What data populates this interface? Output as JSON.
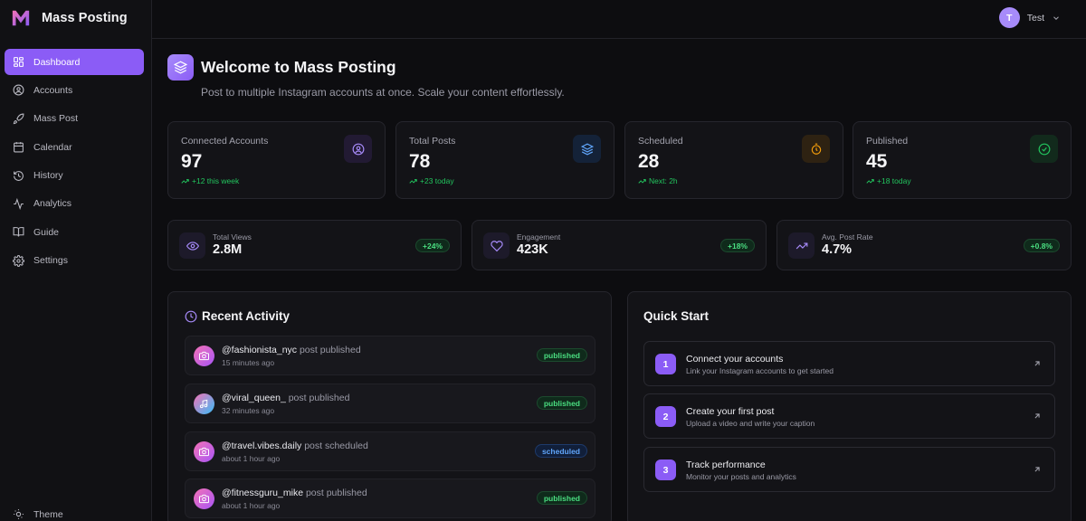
{
  "brand": {
    "name": "Mass Posting"
  },
  "colors": {
    "accent": "#8b5cf6",
    "success": "#22c55e",
    "info": "#60a5fa",
    "warning": "#f59e0b"
  },
  "sidebar": {
    "items": [
      {
        "label": "Dashboard",
        "icon": "dashboard-icon",
        "active": true
      },
      {
        "label": "Accounts",
        "icon": "user-circle-icon"
      },
      {
        "label": "Mass Post",
        "icon": "rocket-icon"
      },
      {
        "label": "Calendar",
        "icon": "calendar-icon"
      },
      {
        "label": "History",
        "icon": "history-icon"
      },
      {
        "label": "Analytics",
        "icon": "activity-icon"
      },
      {
        "label": "Guide",
        "icon": "book-icon"
      },
      {
        "label": "Settings",
        "icon": "gear-icon"
      }
    ],
    "theme_label": "Theme"
  },
  "user": {
    "initial": "T",
    "name": "Test"
  },
  "header": {
    "title": "Welcome to Mass Posting",
    "subtitle": "Post to multiple Instagram accounts at once. Scale your content effortlessly."
  },
  "stats": [
    {
      "label": "Connected Accounts",
      "value": "97",
      "delta": "+12 this week",
      "icon": "user-circle-icon"
    },
    {
      "label": "Total Posts",
      "value": "78",
      "delta": "+23 today",
      "icon": "layers-icon"
    },
    {
      "label": "Scheduled",
      "value": "28",
      "delta": "Next: 2h",
      "icon": "timer-icon"
    },
    {
      "label": "Published",
      "value": "45",
      "delta": "+18 today",
      "icon": "check-circle-icon"
    }
  ],
  "metrics": [
    {
      "label": "Total Views",
      "value": "2.8M",
      "change": "+24%",
      "icon": "eye-icon"
    },
    {
      "label": "Engagement",
      "value": "423K",
      "change": "+18%",
      "icon": "heart-icon"
    },
    {
      "label": "Avg. Post Rate",
      "value": "4.7%",
      "change": "+0.8%",
      "icon": "trending-up-icon"
    }
  ],
  "recent_activity": {
    "title": "Recent Activity",
    "items": [
      {
        "handle": "@fashionista_nyc",
        "action": "post published",
        "time": "15 minutes ago",
        "status": "published",
        "icon": "camera-icon"
      },
      {
        "handle": "@viral_queen_",
        "action": "post published",
        "time": "32 minutes ago",
        "status": "published",
        "icon": "music-note-icon"
      },
      {
        "handle": "@travel.vibes.daily",
        "action": "post scheduled",
        "time": "about 1 hour ago",
        "status": "scheduled",
        "icon": "camera-icon"
      },
      {
        "handle": "@fitnessguru_mike",
        "action": "post published",
        "time": "about 1 hour ago",
        "status": "published",
        "icon": "camera-icon"
      }
    ]
  },
  "quick_start": {
    "title": "Quick Start",
    "steps": [
      {
        "number": "1",
        "title": "Connect your accounts",
        "description": "Link your Instagram accounts to get started"
      },
      {
        "number": "2",
        "title": "Create your first post",
        "description": "Upload a video and write your caption"
      },
      {
        "number": "3",
        "title": "Track performance",
        "description": "Monitor your posts and analytics"
      }
    ]
  }
}
